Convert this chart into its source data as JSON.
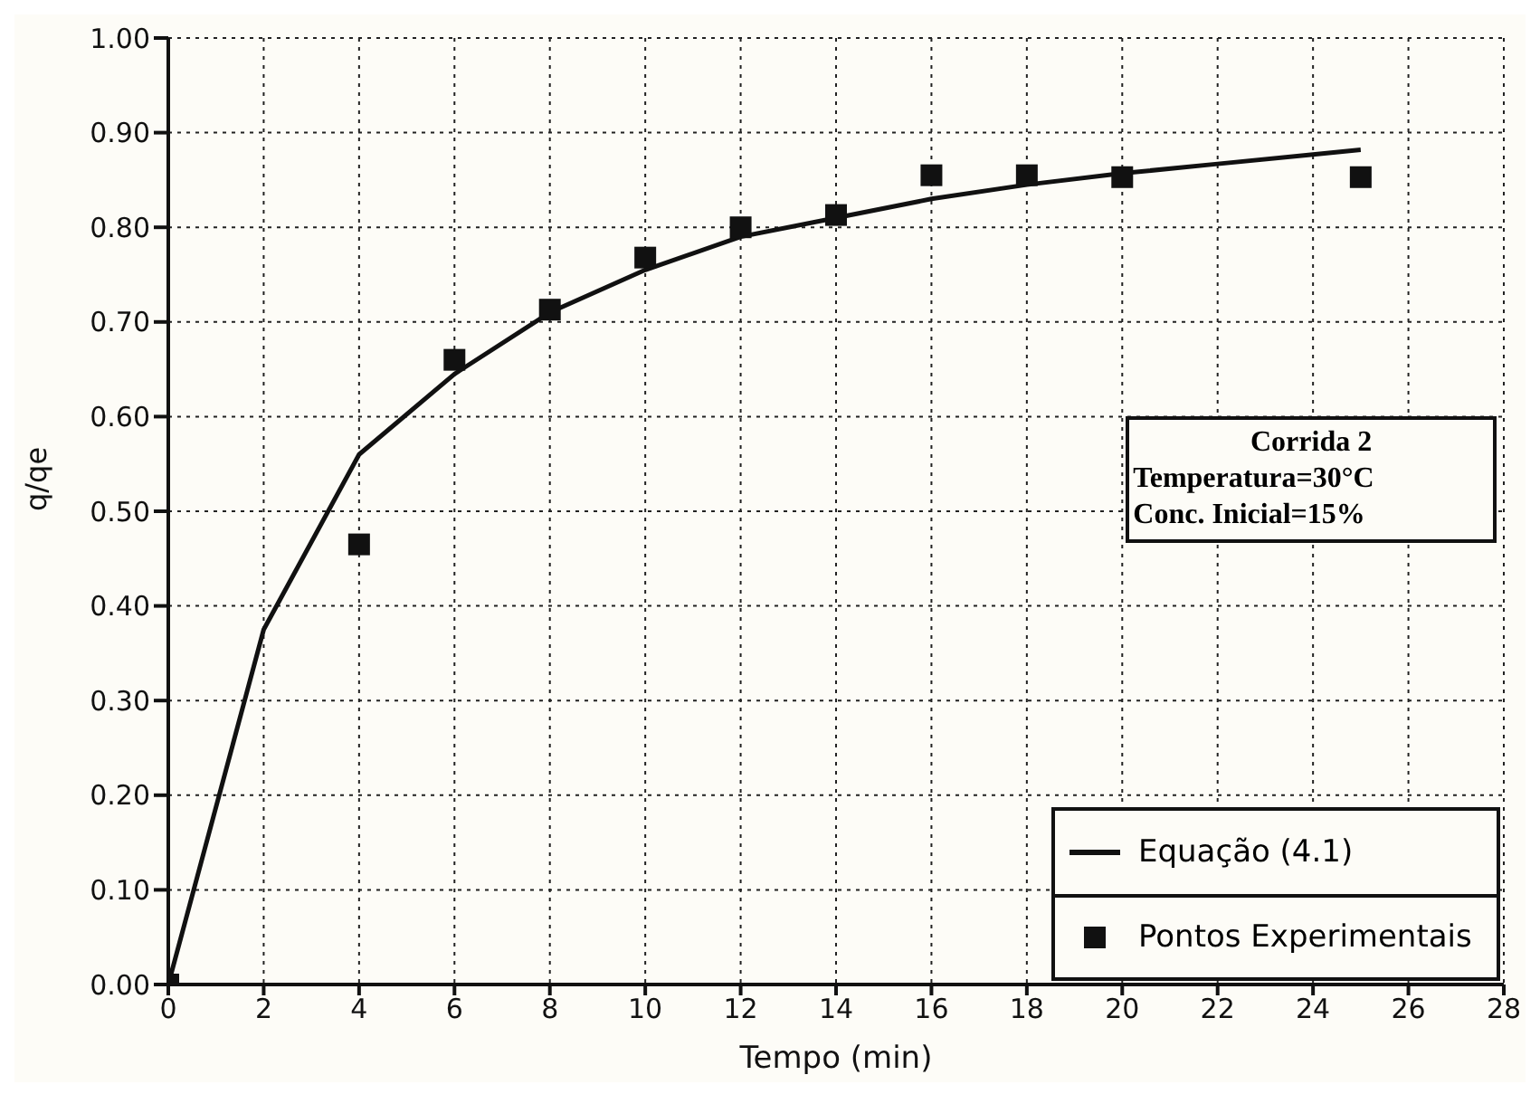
{
  "chart_data": {
    "type": "line",
    "xlabel": "Tempo (min)",
    "ylabel": "q/qe",
    "xlim": [
      0,
      28
    ],
    "xticks": [
      0,
      2,
      4,
      6,
      8,
      10,
      12,
      14,
      16,
      18,
      20,
      22,
      24,
      26,
      28
    ],
    "ylim": [
      0,
      1
    ],
    "yticks": [
      {
        "value": 0,
        "label": "0.00"
      },
      {
        "value": 0.1,
        "label": "0.10"
      },
      {
        "value": 0.2,
        "label": "0.20"
      },
      {
        "value": 0.3,
        "label": "0.30"
      },
      {
        "value": 0.4,
        "label": "0.40"
      },
      {
        "value": 0.5,
        "label": "0.50"
      },
      {
        "value": 0.6,
        "label": "0.60"
      },
      {
        "value": 0.7,
        "label": "0.70"
      },
      {
        "value": 0.8,
        "label": "0.80"
      },
      {
        "value": 0.9,
        "label": "0.90"
      },
      {
        "value": 1,
        "label": "1.00"
      }
    ],
    "grid": true,
    "legend": "bottom right",
    "annotations": [
      "Corrida 2",
      "Temperatura=30°C",
      "Conc. Inicial=15%"
    ],
    "series": [
      {
        "name": "Equação (4.1)",
        "color": "#111111",
        "marker": "none",
        "line_style": "solid",
        "x": [
          0,
          2,
          4,
          6,
          8,
          10,
          12,
          14,
          16,
          18,
          20,
          22,
          24,
          25
        ],
        "values": [
          0,
          0.375,
          0.56,
          0.645,
          0.71,
          0.755,
          0.79,
          0.81,
          0.83,
          0.845,
          0.857,
          0.867,
          0.877,
          0.882
        ]
      },
      {
        "name": "Pontos Experimentais",
        "type": "scatter",
        "color": "#111111",
        "marker": "square",
        "x": [
          0,
          4,
          6,
          8,
          10,
          12,
          14,
          16,
          18,
          20,
          25
        ],
        "values": [
          0,
          0.465,
          0.66,
          0.713,
          0.768,
          0.8,
          0.813,
          0.855,
          0.855,
          0.853,
          0.853
        ]
      }
    ]
  }
}
